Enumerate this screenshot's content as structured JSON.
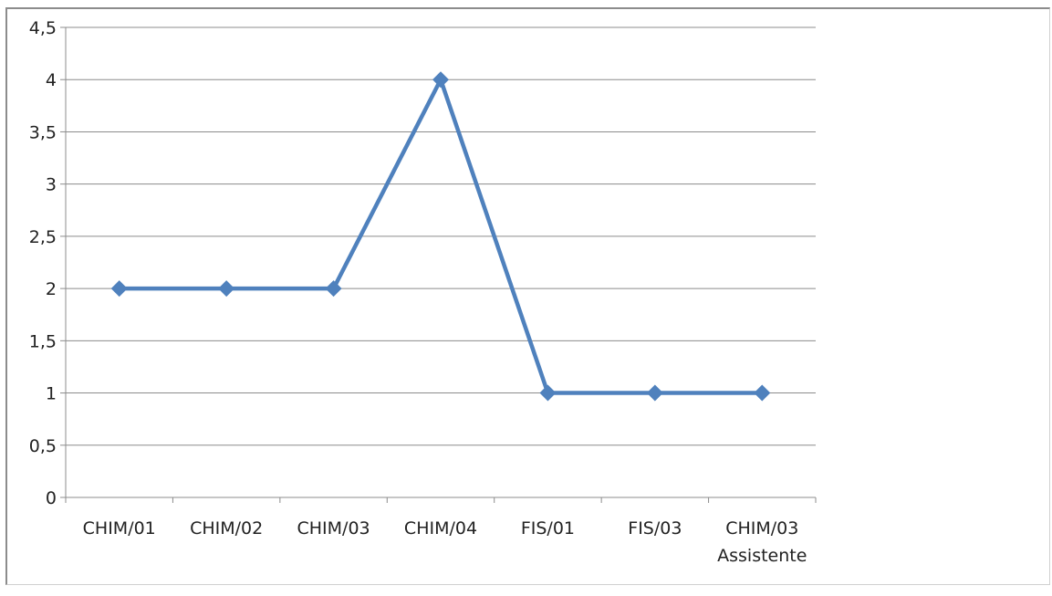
{
  "chart_data": {
    "type": "line",
    "categories": [
      "CHIM/01",
      "CHIM/02",
      "CHIM/03",
      "CHIM/04",
      "FIS/01",
      "FIS/03",
      "CHIM/03\nAssistente"
    ],
    "series": [
      {
        "values": [
          2,
          2,
          2,
          4,
          1,
          1,
          1
        ]
      }
    ],
    "title": "",
    "xlabel": "",
    "ylabel": "",
    "ylim": [
      0,
      4.5
    ],
    "yticks": [
      0,
      0.5,
      1,
      1.5,
      2,
      2.5,
      3,
      3.5,
      4,
      4.5
    ],
    "ytick_labels": [
      "0",
      "0,5",
      "1",
      "1,5",
      "2",
      "2,5",
      "3",
      "3,5",
      "4",
      "4,5"
    ],
    "grid": true,
    "legend": "none",
    "colors": {
      "series": "#4f81bd",
      "grid": "#8c8c8c",
      "axis": "#8c8c8c"
    }
  }
}
